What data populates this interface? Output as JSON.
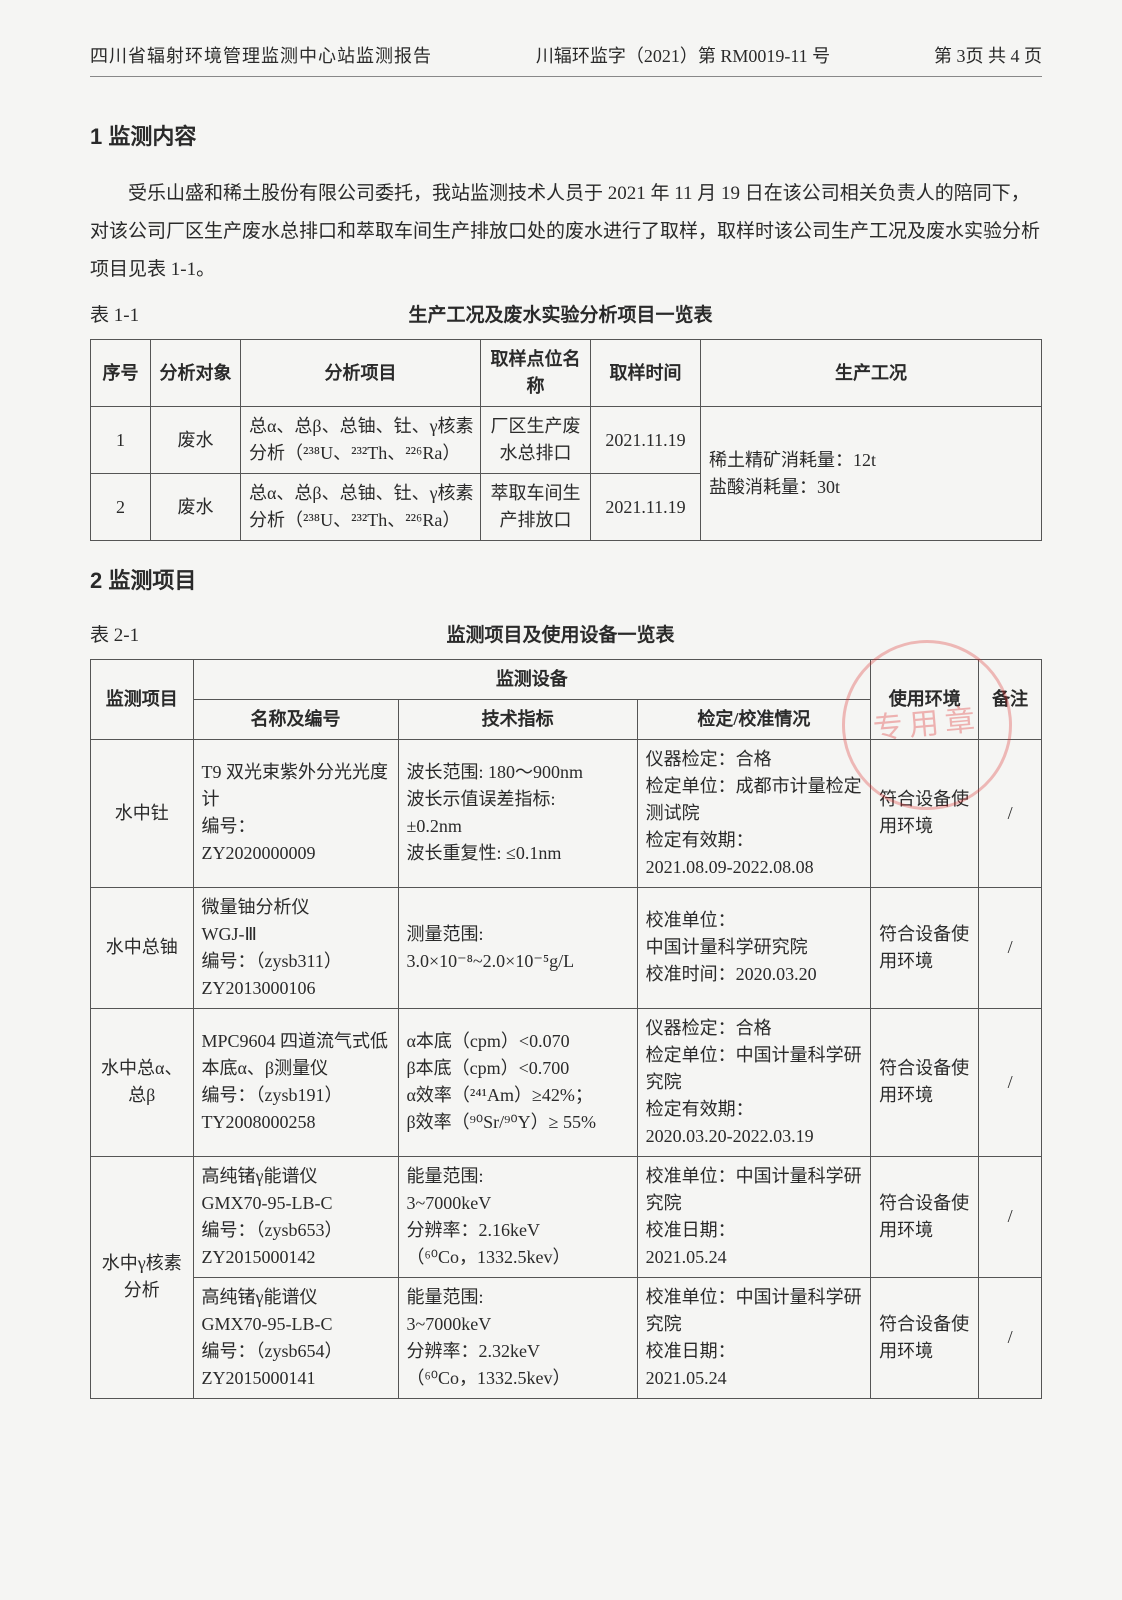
{
  "header": {
    "left": "四川省辐射环境管理监测中心站监测报告",
    "mid": "川辐环监字（2021）第 RM0019-11 号",
    "right": "第 3页 共 4 页"
  },
  "section1": {
    "title": "1 监测内容",
    "para": "受乐山盛和稀土股份有限公司委托，我站监测技术人员于 2021 年 11 月 19 日在该公司相关负责人的陪同下，对该公司厂区生产废水总排口和萃取车间生产排放口处的废水进行了取样，取样时该公司生产工况及废水实验分析项目见表 1-1。"
  },
  "table1": {
    "label": "表 1-1",
    "caption": "生产工况及废水实验分析项目一览表",
    "headers": [
      "序号",
      "分析对象",
      "分析项目",
      "取样点位名称",
      "取样时间",
      "生产工况"
    ],
    "rows": [
      {
        "no": "1",
        "obj": "废水",
        "proj": "总α、总β、总铀、钍、γ核素分析（²³⁸U、²³²Th、²²⁶Ra）",
        "loc": "厂区生产废水总排口",
        "time": "2021.11.19"
      },
      {
        "no": "2",
        "obj": "废水",
        "proj": "总α、总β、总铀、钍、γ核素分析（²³⁸U、²³²Th、²²⁶Ra）",
        "loc": "萃取车间生产排放口",
        "time": "2021.11.19"
      }
    ],
    "prod": "稀土精矿消耗量：12t\n盐酸消耗量：30t"
  },
  "section2": {
    "title": "2 监测项目"
  },
  "table2": {
    "label": "表 2-1",
    "caption": "监测项目及使用设备一览表",
    "headers": {
      "item": "监测项目",
      "equip": "监测设备",
      "name": "名称及编号",
      "spec": "技术指标",
      "cal": "检定/校准情况",
      "env": "使用环境",
      "note": "备注"
    },
    "rows": [
      {
        "item": "水中钍",
        "name": "T9 双光束紫外分光光度计\n编号：\nZY2020000009",
        "spec": "波长范围: 180～900nm\n波长示值误差指标:\n±0.2nm\n波长重复性: ≤0.1nm",
        "cal": "仪器检定：合格\n检定单位：成都市计量检定测试院\n检定有效期：\n2021.08.09-2022.08.08",
        "env": "符合设备使用环境",
        "note": "/"
      },
      {
        "item": "水中总铀",
        "name": "微量铀分析仪\nWGJ-Ⅲ\n编号：（zysb311）\nZY2013000106",
        "spec": "测量范围:\n3.0×10⁻⁸~2.0×10⁻⁵g/L",
        "cal": "校准单位：\n中国计量科学研究院\n校准时间：2020.03.20",
        "env": "符合设备使用环境",
        "note": "/"
      },
      {
        "item": "水中总α、总β",
        "name": "MPC9604 四道流气式低本底α、β测量仪\n编号：（zysb191）\nTY2008000258",
        "spec": "α本底（cpm）<0.070\nβ本底（cpm）<0.700\nα效率（²⁴¹Am）≥42%；\nβ效率（⁹⁰Sr/⁹⁰Y）≥ 55%",
        "cal": "仪器检定：合格\n检定单位：中国计量科学研究院\n检定有效期：\n2020.03.20-2022.03.19",
        "env": "符合设备使用环境",
        "note": "/"
      },
      {
        "item": "水中γ核素分析",
        "rowspan": 2,
        "name": "高纯锗γ能谱仪\nGMX70-95-LB-C\n编号：（zysb653）\nZY2015000142",
        "spec": "能量范围:\n3~7000keV\n分辨率：2.16keV\n（⁶⁰Co，1332.5kev）",
        "cal": "校准单位：中国计量科学研究院\n校准日期：\n2021.05.24",
        "env": "符合设备使用环境",
        "note": "/"
      },
      {
        "name": "高纯锗γ能谱仪\nGMX70-95-LB-C\n编号：（zysb654）\nZY2015000141",
        "spec": "能量范围:\n3~7000keV\n分辨率：2.32keV\n（⁶⁰Co，1332.5kev）",
        "cal": "校准单位：中国计量科学研究院\n校准日期：\n2021.05.24",
        "env": "符合设备使用环境",
        "note": "/"
      }
    ]
  },
  "stamp_text": "专用章",
  "colors": {
    "text": "#2a2a2a",
    "border": "#555555",
    "stamp": "rgba(220,40,40,0.55)",
    "bg": "#f5f5f3"
  }
}
